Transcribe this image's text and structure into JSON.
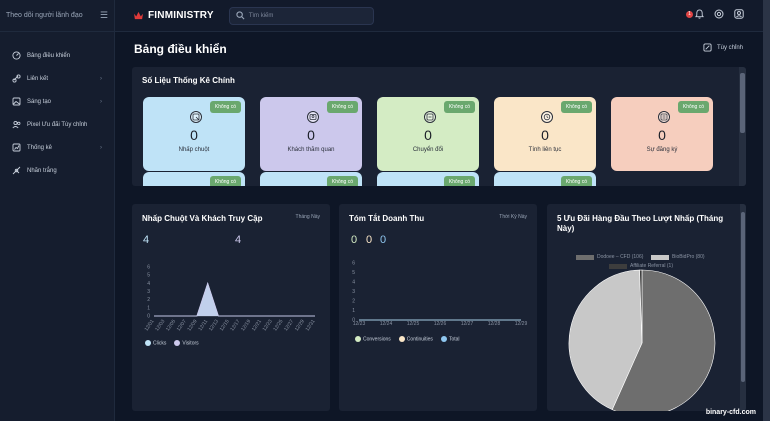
{
  "sidebar": {
    "title": "Theo dõi người lãnh đạo",
    "items": [
      {
        "label": "Bảng điều khiển",
        "icon": "dashboard-icon",
        "has_chevron": false
      },
      {
        "label": "Liên kết",
        "icon": "link-icon",
        "has_chevron": true
      },
      {
        "label": "Sáng tạo",
        "icon": "creative-icon",
        "has_chevron": true
      },
      {
        "label": "Pixel Ưu đãi Tùy chỉnh",
        "icon": "users-icon",
        "has_chevron": false
      },
      {
        "label": "Thống kê",
        "icon": "stats-icon",
        "has_chevron": true
      },
      {
        "label": "Nhãn trắng",
        "icon": "white-label-icon",
        "has_chevron": false
      }
    ]
  },
  "header": {
    "brand": "FINMINISTRY",
    "search_placeholder": "Tìm kiếm",
    "notification_count": "1"
  },
  "page": {
    "title": "Bảng điều khiển",
    "customize_label": "Tùy chỉnh"
  },
  "stats": {
    "title": "Số Liệu Thống Kê Chính",
    "tag": "Không có",
    "cards": [
      {
        "label": "Nhấp chuột",
        "value": "0",
        "color": "#bfe3f7",
        "icon": "click-icon"
      },
      {
        "label": "Khách thăm quan",
        "value": "0",
        "color": "#ccc8ec",
        "icon": "visitor-icon"
      },
      {
        "label": "Chuyển đổi",
        "value": "0",
        "color": "#d4ecc4",
        "icon": "conversion-icon"
      },
      {
        "label": "Tính liên tục",
        "value": "0",
        "color": "#fae6c8",
        "icon": "continuity-icon"
      },
      {
        "label": "Sự đăng ký",
        "value": "0",
        "color": "#f6cebe",
        "icon": "registration-icon"
      }
    ],
    "second_row_colors": [
      "#bfe3f7",
      "#bfe3f7",
      "#bfe3f7",
      "#bfe3f7"
    ]
  },
  "clicks_panel": {
    "title": "Nhấp Chuột Và Khách Truy Cập",
    "period": "Tháng Này",
    "clicks_total": "4",
    "visitors_total": "4"
  },
  "revenue_panel": {
    "title": "Tóm Tắt Doanh Thu",
    "period": "Thời Kỳ Này",
    "totals": [
      "0",
      "0",
      "0"
    ]
  },
  "offers_panel": {
    "title": "5 Ưu Đãi Hàng Đầu Theo Lượt Nhấp (Tháng Này)"
  },
  "watermark": "binary-cfd.com",
  "chart_data": [
    {
      "type": "area",
      "title": "Nhấp Chuột Và Khách Truy Cập",
      "x": [
        "12/01",
        "12/03",
        "12/05",
        "12/07",
        "12/09",
        "12/11",
        "12/13",
        "12/15",
        "12/17",
        "12/19",
        "12/21",
        "12/23",
        "12/25",
        "12/27",
        "12/29",
        "12/31"
      ],
      "series": [
        {
          "name": "Clicks",
          "values": [
            0,
            0,
            0,
            0,
            0,
            4,
            0,
            0,
            0,
            0,
            0,
            0,
            0,
            0,
            0,
            0
          ],
          "color": "#bfe3f7"
        },
        {
          "name": "Visitors",
          "values": [
            0,
            0,
            0,
            0,
            0,
            4,
            0,
            0,
            0,
            0,
            0,
            0,
            0,
            0,
            0,
            0
          ],
          "color": "#ccc8ec"
        }
      ],
      "yticks": [
        "0",
        "1",
        "2",
        "3",
        "4",
        "5",
        "6"
      ],
      "ylim": [
        0,
        6
      ]
    },
    {
      "type": "line",
      "title": "Tóm Tắt Doanh Thu",
      "x": [
        "12/23",
        "12/24",
        "12/25",
        "12/26",
        "12/27",
        "12/28",
        "12/29"
      ],
      "series": [
        {
          "name": "Conversions",
          "values": [
            0,
            0,
            0,
            0,
            0,
            0,
            0
          ],
          "color": "#d4ecc4"
        },
        {
          "name": "Continuities",
          "values": [
            0,
            0,
            0,
            0,
            0,
            0,
            0
          ],
          "color": "#fae6c8"
        },
        {
          "name": "Total",
          "values": [
            0,
            0,
            0,
            0,
            0,
            0,
            0
          ],
          "color": "#8fc7f0"
        }
      ],
      "yticks": [
        "0",
        "1",
        "2",
        "3",
        "4",
        "5",
        "6"
      ],
      "ylim": [
        0,
        6
      ]
    },
    {
      "type": "pie",
      "title": "5 Ưu Đãi Hàng Đầu Theo Lượt Nhấp (Tháng Này)",
      "legend": "top",
      "series": [
        {
          "name": "Dodoee – CFD (106)",
          "value": 106,
          "color": "#6e6e6e"
        },
        {
          "name": "BioBidPro (80)",
          "value": 80,
          "color": "#c8c8c8"
        },
        {
          "name": "Affiliate Referral (1)",
          "value": 1,
          "color": "#3d3d3d"
        }
      ]
    }
  ]
}
